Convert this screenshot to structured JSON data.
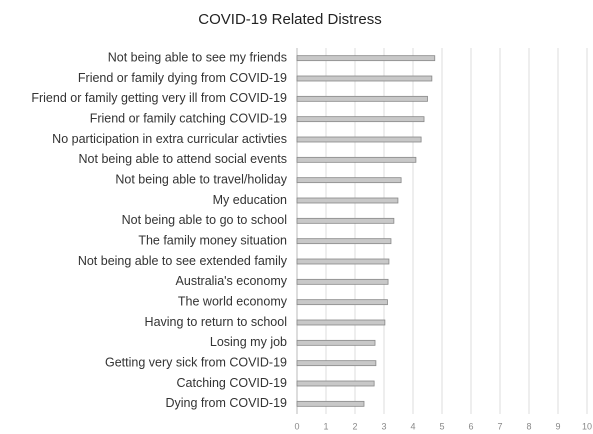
{
  "chart_data": {
    "type": "barh",
    "title": "COVID-19 Related Distress",
    "categories": [
      "Not being able to see my friends",
      "Friend or family dying from COVID-19",
      "Friend or family getting very ill from COVID-19",
      "Friend or family catching COVID-19",
      "No participation in extra curricular activties",
      "Not being able to attend social events",
      "Not being able to travel/holiday",
      "My education",
      "Not being able to go to school",
      "The family money situation",
      "Not being able to see extended family",
      "Australia's economy",
      "The world economy",
      "Having to return to school",
      "Losing my job",
      "Getting very sick from COVID-19",
      "Catching COVID-19",
      "Dying from COVID-19"
    ],
    "values": [
      4.75,
      4.65,
      4.5,
      4.38,
      4.28,
      4.1,
      3.59,
      3.48,
      3.34,
      3.24,
      3.17,
      3.14,
      3.12,
      3.03,
      2.69,
      2.72,
      2.66,
      2.31
    ],
    "color": "#c8c8c8",
    "xlim": [
      0,
      10
    ],
    "xticks": [
      0,
      1,
      2,
      3,
      4,
      5,
      6,
      7,
      8,
      9,
      10
    ],
    "grid": true
  }
}
